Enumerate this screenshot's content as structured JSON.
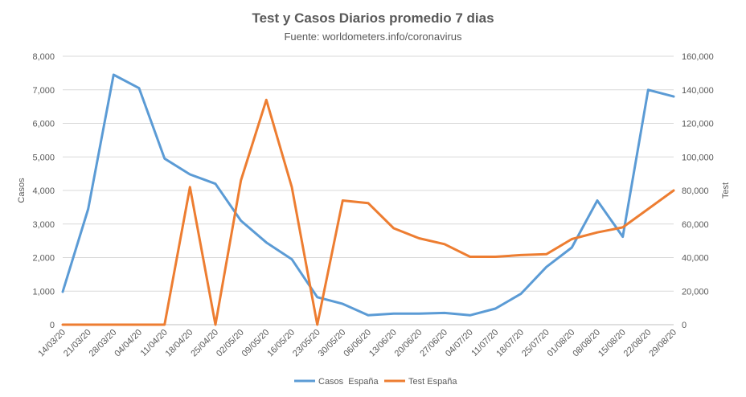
{
  "chart_data": {
    "type": "line",
    "title": "Test y Casos Diarios promedio 7 dias",
    "subtitle": "Fuente: worldometers.info/coronavirus",
    "ylabel": "Casos",
    "y2label": "Test",
    "ylim": [
      0,
      8000
    ],
    "y2lim": [
      0,
      160000
    ],
    "yticks": [
      "0",
      "1,000",
      "2,000",
      "3,000",
      "4,000",
      "5,000",
      "6,000",
      "7,000",
      "8,000"
    ],
    "y2ticks": [
      "0",
      "20,000",
      "40,000",
      "60,000",
      "80,000",
      "100,000",
      "120,000",
      "140,000",
      "160,000"
    ],
    "categories": [
      "14/03/20",
      "21/03/20",
      "28/03/20",
      "04/04/20",
      "11/04/20",
      "18/04/20",
      "25/04/20",
      "02/05/20",
      "09/05/20",
      "16/05/20",
      "23/05/20",
      "30/05/20",
      "06/06/20",
      "13/06/20",
      "20/06/20",
      "27/06/20",
      "04/07/20",
      "11/07/20",
      "18/07/20",
      "25/07/20",
      "01/08/20",
      "08/08/20",
      "15/08/20",
      "22/08/20",
      "29/08/20"
    ],
    "grid": true,
    "legend": "bottom",
    "series": [
      {
        "name": "Casos  España",
        "axis": "left",
        "color": "#5B9BD5",
        "values": [
          980,
          3450,
          7450,
          7050,
          4950,
          4480,
          4200,
          3100,
          2450,
          1950,
          820,
          620,
          280,
          330,
          330,
          350,
          280,
          480,
          920,
          1720,
          2300,
          3700,
          2620,
          7000,
          6800
        ]
      },
      {
        "name": "Test España",
        "axis": "right",
        "color": "#ED7D31",
        "values": [
          0,
          0,
          0,
          0,
          0,
          82000,
          0,
          86000,
          134000,
          82000,
          0,
          74000,
          72500,
          57500,
          51500,
          48000,
          40500,
          40500,
          41500,
          42000,
          51000,
          55000,
          58000,
          69000,
          80000
        ]
      }
    ]
  }
}
